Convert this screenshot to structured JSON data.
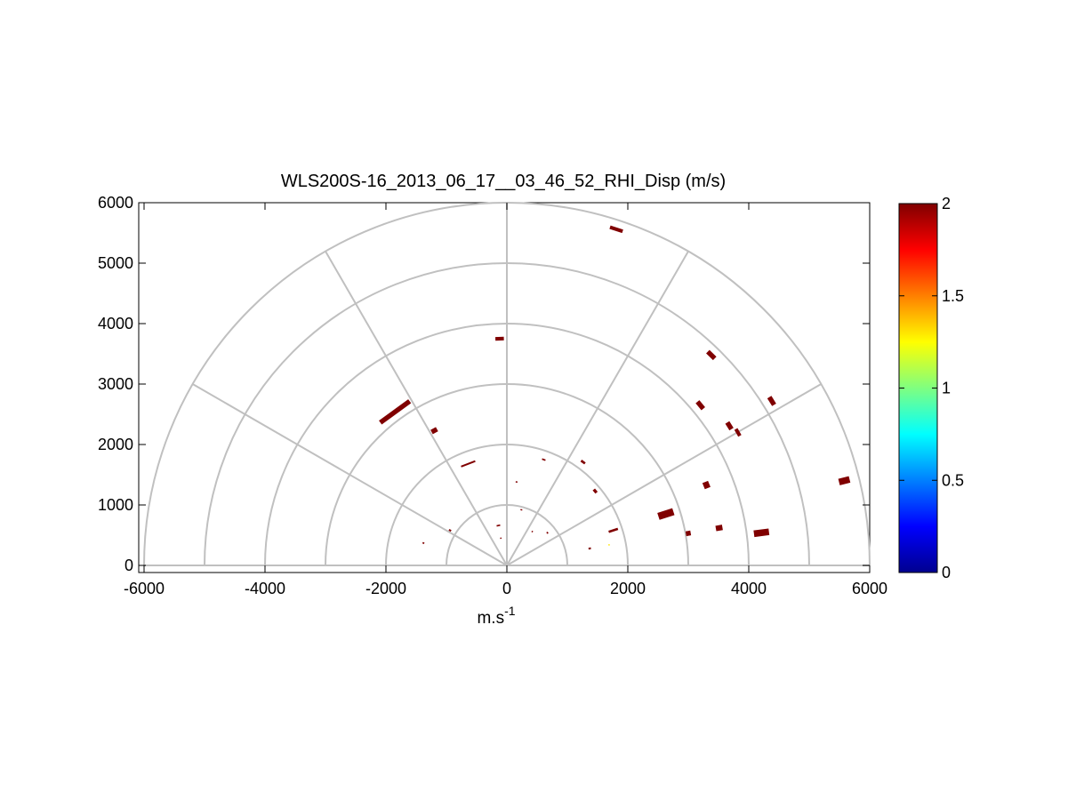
{
  "chart_data": {
    "type": "polar-rhi",
    "title": "WLS200S-16_2013_06_17__03_46_52_RHI_Disp (m/s)",
    "xlabel_base": "m.s",
    "xlabel_exp": "-1",
    "xlim": [
      -6000,
      6000
    ],
    "ylim": [
      -100,
      6000
    ],
    "xticks": [
      "-6000",
      "-4000",
      "-2000",
      "0",
      "2000",
      "4000",
      "6000"
    ],
    "yticks": [
      "0",
      "1000",
      "2000",
      "3000",
      "4000",
      "5000",
      "6000"
    ],
    "polar_rings": [
      1000,
      2000,
      3000,
      4000,
      5000,
      6000
    ],
    "polar_spokes_deg": [
      0,
      30,
      60,
      90,
      120,
      150,
      180
    ],
    "colorbar": {
      "range": [
        0,
        2
      ],
      "ticks": [
        "0",
        "0.5",
        "1",
        "1.5",
        "2"
      ],
      "colormap": "jet"
    },
    "points": [
      {
        "x": 1810,
        "y": 5560,
        "w": 220,
        "h": 60,
        "v": 2
      },
      {
        "x": -120,
        "y": 3750,
        "w": 140,
        "h": 60,
        "v": 2
      },
      {
        "x": -1850,
        "y": 2540,
        "w": 600,
        "h": 80,
        "v": 2
      },
      {
        "x": -1200,
        "y": 2230,
        "w": 100,
        "h": 80,
        "v": 2
      },
      {
        "x": 3380,
        "y": 3480,
        "w": 160,
        "h": 80,
        "v": 2
      },
      {
        "x": 3200,
        "y": 2650,
        "w": 150,
        "h": 80,
        "v": 2
      },
      {
        "x": 4380,
        "y": 2720,
        "w": 150,
        "h": 80,
        "v": 2
      },
      {
        "x": 3680,
        "y": 2310,
        "w": 130,
        "h": 80,
        "v": 2
      },
      {
        "x": 3820,
        "y": 2200,
        "w": 130,
        "h": 60,
        "v": 2
      },
      {
        "x": -640,
        "y": 1680,
        "w": 250,
        "h": 30,
        "v": 2
      },
      {
        "x": 1260,
        "y": 1710,
        "w": 80,
        "h": 40,
        "v": 2
      },
      {
        "x": 610,
        "y": 1750,
        "w": 60,
        "h": 25,
        "v": 2
      },
      {
        "x": 1460,
        "y": 1230,
        "w": 70,
        "h": 50,
        "v": 2
      },
      {
        "x": 160,
        "y": 1380,
        "w": 30,
        "h": 20,
        "v": 2
      },
      {
        "x": 240,
        "y": 920,
        "w": 30,
        "h": 20,
        "v": 2
      },
      {
        "x": 3300,
        "y": 1330,
        "w": 110,
        "h": 100,
        "v": 2
      },
      {
        "x": 5580,
        "y": 1400,
        "w": 110,
        "h": 180,
        "v": 2
      },
      {
        "x": 2630,
        "y": 850,
        "w": 120,
        "h": 260,
        "v": 2
      },
      {
        "x": 1760,
        "y": 580,
        "w": 40,
        "h": 160,
        "v": 2
      },
      {
        "x": 3000,
        "y": 530,
        "w": 80,
        "h": 80,
        "v": 2
      },
      {
        "x": 3510,
        "y": 620,
        "w": 90,
        "h": 110,
        "v": 2
      },
      {
        "x": 4210,
        "y": 540,
        "w": 110,
        "h": 250,
        "v": 2
      },
      {
        "x": -940,
        "y": 580,
        "w": 30,
        "h": 40,
        "v": 2
      },
      {
        "x": -1380,
        "y": 370,
        "w": 25,
        "h": 30,
        "v": 2
      },
      {
        "x": -140,
        "y": 660,
        "w": 60,
        "h": 25,
        "v": 2
      },
      {
        "x": 670,
        "y": 540,
        "w": 30,
        "h": 25,
        "v": 2
      },
      {
        "x": 1370,
        "y": 280,
        "w": 30,
        "h": 40,
        "v": 2
      },
      {
        "x": -100,
        "y": 450,
        "w": 20,
        "h": 20,
        "v": 2
      },
      {
        "x": 420,
        "y": 560,
        "w": 20,
        "h": 20,
        "v": 2
      },
      {
        "x": 1690,
        "y": 340,
        "w": 20,
        "h": 20,
        "v": 1.3
      }
    ]
  }
}
